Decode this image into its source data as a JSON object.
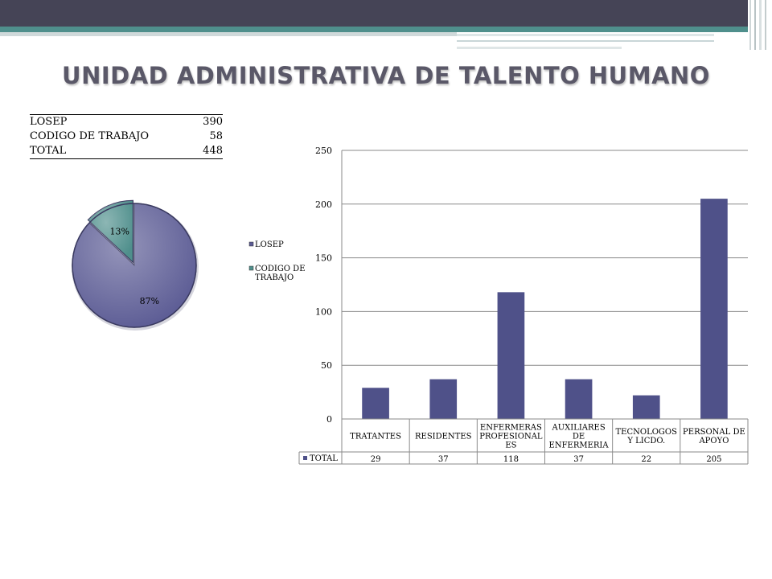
{
  "title": "UNIDAD ADMINISTRATIVA DE TALENTO HUMANO",
  "summary": {
    "rows": [
      {
        "label": "LOSEP",
        "value": "390"
      },
      {
        "label": "CODIGO DE TRABAJO",
        "value": "58"
      },
      {
        "label": "TOTAL",
        "value": "448"
      }
    ]
  },
  "colors": {
    "losep": "#5b5b94",
    "codigo": "#4f8f8c",
    "bar": "#4f5189"
  },
  "chart_data": [
    {
      "type": "pie",
      "categories": [
        "LOSEP",
        "CODIGO DE TRABAJO"
      ],
      "values": [
        390,
        58
      ],
      "percent_labels": [
        "87%",
        "13%"
      ],
      "legend": [
        "LOSEP",
        "CODIGO DE TRABAJO"
      ],
      "legend_placement": "right"
    },
    {
      "type": "bar",
      "categories": [
        "TRATANTES",
        "RESIDENTES",
        "ENFERMERAS PROFESIONALES",
        "AUXILIARES DE ENFERMERIA",
        "TECNOLOGOS Y LICDO.",
        "PERSONAL DE APOYO"
      ],
      "category_lines": [
        [
          "TRATANTES"
        ],
        [
          "RESIDENTES"
        ],
        [
          "ENFERMERAS",
          "PROFESIONAL",
          "ES"
        ],
        [
          "AUXILIARES",
          "DE",
          "ENFERMERIA"
        ],
        [
          "TECNOLOGOS",
          "Y LICDO."
        ],
        [
          "PERSONAL DE",
          "APOYO"
        ]
      ],
      "series": [
        {
          "name": "TOTAL",
          "values": [
            29,
            37,
            118,
            37,
            22,
            205
          ]
        }
      ],
      "ylim": [
        0,
        250
      ],
      "yticks": [
        0,
        50,
        100,
        150,
        200,
        250
      ],
      "grid": true,
      "data_table": true
    }
  ]
}
